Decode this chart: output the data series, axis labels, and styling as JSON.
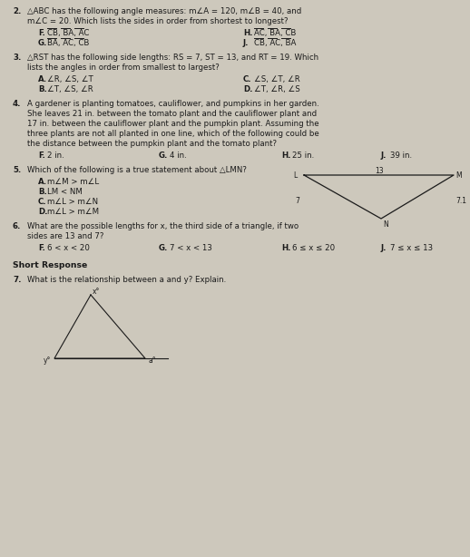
{
  "bg_color": "#cdc8bc",
  "text_color": "#1a1a1a",
  "fs": 6.2,
  "fs_bold": 6.2,
  "fs_small": 5.5,
  "q2_text1": "△ABC has the following angle measures: m∠A = 120, m∠B = 40, and",
  "q2_text2": "m∠C = 20. Which lists the sides in order from shortest to longest?",
  "q2_F": "CB, BA, AC",
  "q2_G": "BA, AC, CB",
  "q2_H": "AC, BA, CB",
  "q2_J": "CB, AC, BA",
  "q3_text1": "△RST has the following side lengths: RS = 7, ST = 13, and RT = 19. Which",
  "q3_text2": "lists the angles in order from smallest to largest?",
  "q3_A": "∠R, ∠S, ∠T",
  "q3_B": "∠T, ∠S, ∠R",
  "q3_C": "∠S, ∠T, ∠R",
  "q3_D": "∠T, ∠R, ∠S",
  "q4_lines": [
    "A gardener is planting tomatoes, cauliflower, and pumpkins in her garden.",
    "She leaves 21 in. between the tomato plant and the cauliflower plant and",
    "17 in. between the cauliflower plant and the pumpkin plant. Assuming the",
    "three plants are not all planted in one line, which of the following could be",
    "the distance between the pumpkin plant and the tomato plant?"
  ],
  "q4_F": "2 in.",
  "q4_G": "4 in.",
  "q4_H": "25 in.",
  "q4_J": "39 in.",
  "q5_text": "Which of the following is a true statement about △LMN?",
  "q5_A": "m∠M > m∠L",
  "q5_B": "LM < NM",
  "q5_C": "m∠L > m∠N",
  "q5_D": "m∠L > m∠M",
  "q6_text1": "What are the possible lengths for x, the third side of a triangle, if two",
  "q6_text2": "sides are 13 and 7?",
  "q6_F": "6 < x < 20",
  "q6_G": "7 < x < 13",
  "q6_H": "6 ≤ x ≤ 20",
  "q6_J": "7 ≤ x ≤ 13",
  "q7_text": "What is the relationship between a and y? Explain."
}
